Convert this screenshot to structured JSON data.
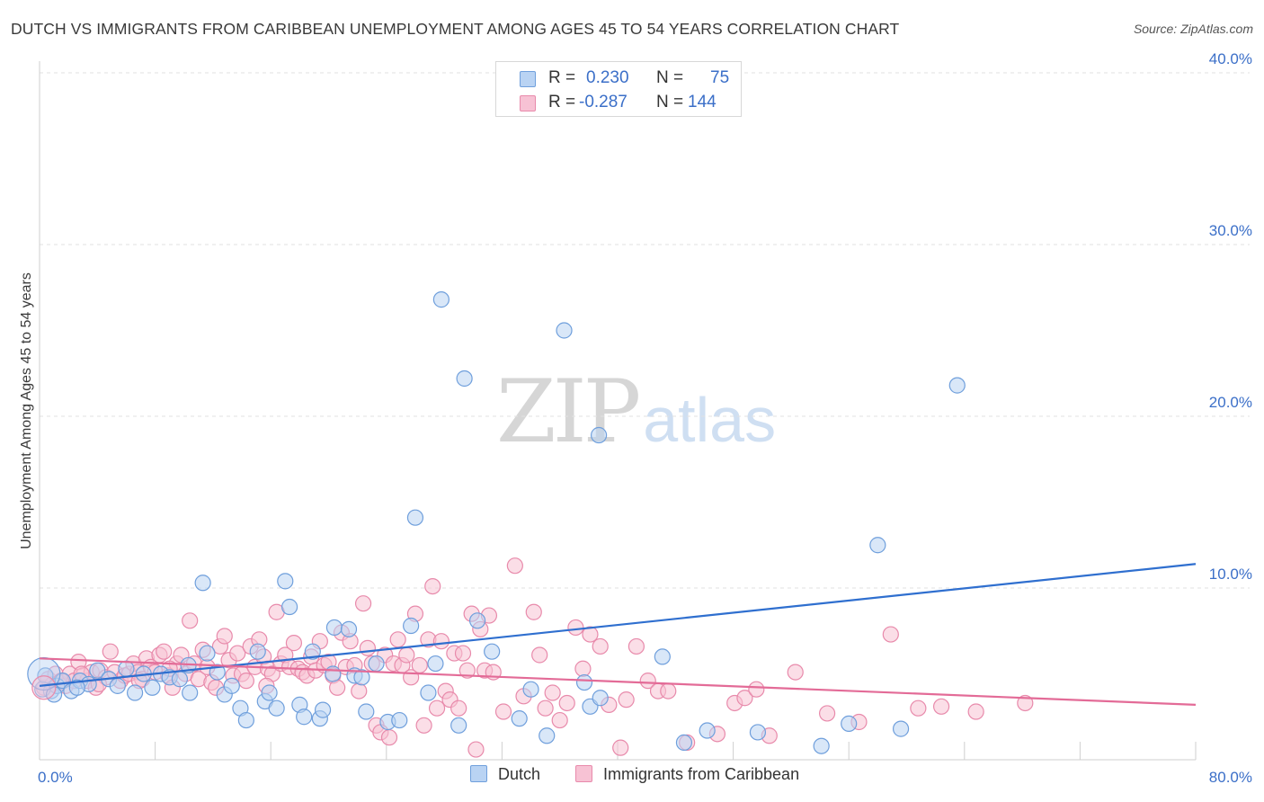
{
  "title": "DUTCH VS IMMIGRANTS FROM CARIBBEAN UNEMPLOYMENT AMONG AGES 45 TO 54 YEARS CORRELATION CHART",
  "source": "Source: ZipAtlas.com",
  "watermark": {
    "zip": "ZIP",
    "atlas": "atlas"
  },
  "colors": {
    "dutch_fill": "#b9d3f3",
    "dutch_stroke": "#6f9fdc",
    "dutch_line": "#2f6fcf",
    "carib_fill": "#f7c2d4",
    "carib_stroke": "#e88aab",
    "carib_line": "#e36b97",
    "axis_label": "#3b6fc8"
  },
  "legend_top": {
    "rows": [
      {
        "r_label": "R =",
        "r_value": "0.230",
        "n_label": "N =",
        "n_value": "75"
      },
      {
        "r_label": "R =",
        "r_value": "-0.287",
        "n_label": "N =",
        "n_value": "144"
      }
    ]
  },
  "legend_bottom": [
    {
      "label": "Dutch"
    },
    {
      "label": "Immigrants from Caribbean"
    }
  ],
  "chart_data": {
    "type": "scatter",
    "title": "DUTCH VS IMMIGRANTS FROM CARIBBEAN UNEMPLOYMENT AMONG AGES 45 TO 54 YEARS CORRELATION CHART",
    "xlabel": "",
    "ylabel": "Unemployment Among Ages 45 to 54 years",
    "xlim": [
      0,
      80
    ],
    "ylim": [
      0,
      40
    ],
    "x_tick_labels": [
      "0.0%",
      "80.0%"
    ],
    "y_tick_labels": [
      {
        "value": 10,
        "label": "10.0%"
      },
      {
        "value": 20,
        "label": "20.0%"
      },
      {
        "value": 30,
        "label": "30.0%"
      },
      {
        "value": 40,
        "label": "40.0%"
      }
    ],
    "grid": true,
    "series": [
      {
        "name": "Dutch",
        "R": 0.23,
        "N": 75,
        "trend": {
          "x": [
            0,
            80
          ],
          "y": [
            4.3,
            11.4
          ]
        },
        "points": [
          [
            0.4,
            4.9
          ],
          [
            0.8,
            4.0
          ],
          [
            1.2,
            4.3
          ],
          [
            1.6,
            4.6
          ],
          [
            2.2,
            4.0
          ],
          [
            2.8,
            4.6
          ],
          [
            3.4,
            4.4
          ],
          [
            4.0,
            5.2
          ],
          [
            4.8,
            4.7
          ],
          [
            5.4,
            4.3
          ],
          [
            6.0,
            5.3
          ],
          [
            6.6,
            3.9
          ],
          [
            7.2,
            5.0
          ],
          [
            7.8,
            4.2
          ],
          [
            8.4,
            5.0
          ],
          [
            9.0,
            4.8
          ],
          [
            9.7,
            4.7
          ],
          [
            10.3,
            5.5
          ],
          [
            10.4,
            3.9
          ],
          [
            11.3,
            10.3
          ],
          [
            11.6,
            6.2
          ],
          [
            12.3,
            5.1
          ],
          [
            12.8,
            3.8
          ],
          [
            13.3,
            4.3
          ],
          [
            13.9,
            3.0
          ],
          [
            14.3,
            2.3
          ],
          [
            15.1,
            6.3
          ],
          [
            15.6,
            3.4
          ],
          [
            15.9,
            3.9
          ],
          [
            16.4,
            3.0
          ],
          [
            17.0,
            10.4
          ],
          [
            17.3,
            8.9
          ],
          [
            18.0,
            3.2
          ],
          [
            18.3,
            2.5
          ],
          [
            18.9,
            6.3
          ],
          [
            19.4,
            2.4
          ],
          [
            19.6,
            2.9
          ],
          [
            20.4,
            7.7
          ],
          [
            20.3,
            5.0
          ],
          [
            21.4,
            7.6
          ],
          [
            21.8,
            4.9
          ],
          [
            22.3,
            4.8
          ],
          [
            22.6,
            2.8
          ],
          [
            23.3,
            5.6
          ],
          [
            24.1,
            2.2
          ],
          [
            24.9,
            2.3
          ],
          [
            25.7,
            7.8
          ],
          [
            26.0,
            14.1
          ],
          [
            26.9,
            3.9
          ],
          [
            27.4,
            5.6
          ],
          [
            27.8,
            26.8
          ],
          [
            29.0,
            2.0
          ],
          [
            29.4,
            22.2
          ],
          [
            30.3,
            8.1
          ],
          [
            31.3,
            6.3
          ],
          [
            33.2,
            2.4
          ],
          [
            34.0,
            4.1
          ],
          [
            36.3,
            25.0
          ],
          [
            35.1,
            1.4
          ],
          [
            37.7,
            4.5
          ],
          [
            38.1,
            3.1
          ],
          [
            38.8,
            3.6
          ],
          [
            38.7,
            18.9
          ],
          [
            43.1,
            6.0
          ],
          [
            44.6,
            1.0
          ],
          [
            46.2,
            1.7
          ],
          [
            49.7,
            1.6
          ],
          [
            54.1,
            0.8
          ],
          [
            56.0,
            2.1
          ],
          [
            58.0,
            12.5
          ],
          [
            59.6,
            1.8
          ],
          [
            63.5,
            21.8
          ],
          [
            0.2,
            4.1
          ],
          [
            1.0,
            3.8
          ],
          [
            2.6,
            4.2
          ]
        ]
      },
      {
        "name": "Immigrants from Caribbean",
        "R": -0.287,
        "N": 144,
        "trend": {
          "x": [
            0,
            80
          ],
          "y": [
            5.9,
            3.2
          ]
        },
        "points": [
          [
            0.3,
            4.2
          ],
          [
            0.6,
            4.7
          ],
          [
            0.9,
            4.4
          ],
          [
            1.1,
            5.0
          ],
          [
            1.4,
            4.5
          ],
          [
            1.8,
            4.3
          ],
          [
            2.1,
            5.0
          ],
          [
            2.4,
            4.6
          ],
          [
            2.7,
            5.7
          ],
          [
            3.0,
            4.9
          ],
          [
            3.3,
            4.6
          ],
          [
            3.6,
            5.1
          ],
          [
            3.9,
            4.2
          ],
          [
            4.2,
            5.2
          ],
          [
            4.6,
            4.8
          ],
          [
            4.9,
            6.3
          ],
          [
            5.2,
            5.1
          ],
          [
            5.6,
            4.6
          ],
          [
            5.9,
            4.9
          ],
          [
            6.2,
            5.0
          ],
          [
            6.5,
            5.6
          ],
          [
            6.8,
            5.1
          ],
          [
            7.1,
            4.7
          ],
          [
            7.4,
            5.9
          ],
          [
            7.7,
            5.4
          ],
          [
            8.0,
            5.1
          ],
          [
            8.3,
            6.1
          ],
          [
            8.6,
            6.3
          ],
          [
            8.9,
            4.9
          ],
          [
            9.2,
            4.2
          ],
          [
            9.5,
            5.6
          ],
          [
            9.8,
            6.1
          ],
          [
            10.1,
            5.0
          ],
          [
            10.4,
            8.1
          ],
          [
            10.7,
            5.6
          ],
          [
            11.0,
            4.7
          ],
          [
            11.3,
            6.4
          ],
          [
            11.6,
            5.4
          ],
          [
            11.9,
            4.5
          ],
          [
            12.2,
            4.2
          ],
          [
            12.5,
            6.6
          ],
          [
            12.8,
            7.2
          ],
          [
            13.1,
            5.8
          ],
          [
            13.4,
            4.9
          ],
          [
            13.7,
            6.2
          ],
          [
            14.0,
            5.0
          ],
          [
            14.3,
            4.6
          ],
          [
            14.6,
            6.6
          ],
          [
            14.9,
            5.4
          ],
          [
            15.2,
            7.0
          ],
          [
            15.5,
            6.0
          ],
          [
            15.8,
            5.3
          ],
          [
            16.1,
            5.0
          ],
          [
            16.4,
            8.6
          ],
          [
            16.7,
            5.6
          ],
          [
            17.0,
            6.1
          ],
          [
            17.3,
            5.4
          ],
          [
            17.6,
            6.8
          ],
          [
            17.9,
            5.3
          ],
          [
            18.2,
            5.1
          ],
          [
            18.5,
            4.9
          ],
          [
            18.8,
            6.0
          ],
          [
            19.1,
            5.2
          ],
          [
            19.4,
            6.9
          ],
          [
            19.7,
            5.5
          ],
          [
            20.0,
            5.7
          ],
          [
            20.3,
            4.9
          ],
          [
            20.6,
            4.2
          ],
          [
            20.9,
            7.4
          ],
          [
            21.2,
            5.4
          ],
          [
            21.5,
            6.9
          ],
          [
            21.8,
            5.5
          ],
          [
            22.1,
            4.0
          ],
          [
            22.4,
            9.1
          ],
          [
            22.7,
            6.5
          ],
          [
            23.0,
            5.6
          ],
          [
            23.3,
            2.0
          ],
          [
            23.6,
            1.6
          ],
          [
            23.9,
            6.1
          ],
          [
            24.2,
            1.3
          ],
          [
            24.5,
            5.6
          ],
          [
            24.8,
            7.0
          ],
          [
            25.1,
            5.5
          ],
          [
            25.4,
            6.1
          ],
          [
            25.7,
            4.8
          ],
          [
            26.0,
            8.5
          ],
          [
            26.3,
            5.5
          ],
          [
            26.6,
            2.0
          ],
          [
            26.9,
            7.0
          ],
          [
            27.2,
            10.1
          ],
          [
            27.5,
            3.0
          ],
          [
            27.8,
            6.9
          ],
          [
            28.1,
            4.0
          ],
          [
            28.4,
            3.5
          ],
          [
            28.7,
            6.2
          ],
          [
            29.0,
            3.0
          ],
          [
            29.3,
            6.2
          ],
          [
            29.6,
            5.2
          ],
          [
            29.9,
            8.5
          ],
          [
            30.2,
            0.6
          ],
          [
            30.5,
            7.6
          ],
          [
            30.8,
            5.2
          ],
          [
            31.1,
            8.4
          ],
          [
            31.4,
            5.1
          ],
          [
            32.1,
            2.8
          ],
          [
            32.9,
            11.3
          ],
          [
            33.5,
            3.7
          ],
          [
            34.2,
            8.6
          ],
          [
            34.6,
            6.1
          ],
          [
            35.0,
            3.0
          ],
          [
            35.5,
            3.9
          ],
          [
            36.0,
            2.3
          ],
          [
            36.5,
            3.3
          ],
          [
            37.1,
            7.7
          ],
          [
            37.6,
            5.3
          ],
          [
            38.1,
            7.3
          ],
          [
            38.8,
            6.6
          ],
          [
            39.4,
            3.2
          ],
          [
            40.2,
            0.7
          ],
          [
            40.6,
            3.5
          ],
          [
            41.3,
            6.6
          ],
          [
            42.1,
            4.6
          ],
          [
            42.8,
            4.0
          ],
          [
            43.5,
            4.0
          ],
          [
            44.8,
            1.0
          ],
          [
            46.9,
            1.5
          ],
          [
            48.1,
            3.3
          ],
          [
            48.8,
            3.6
          ],
          [
            49.6,
            4.1
          ],
          [
            50.5,
            1.4
          ],
          [
            52.3,
            5.1
          ],
          [
            54.5,
            2.7
          ],
          [
            56.7,
            2.2
          ],
          [
            58.9,
            7.3
          ],
          [
            60.8,
            3.0
          ],
          [
            62.4,
            3.1
          ],
          [
            64.8,
            2.8
          ],
          [
            68.2,
            3.3
          ],
          [
            1.5,
            4.6
          ],
          [
            2.9,
            5.0
          ],
          [
            4.1,
            4.4
          ],
          [
            6.9,
            4.6
          ],
          [
            9.0,
            5.3
          ],
          [
            15.7,
            4.3
          ]
        ]
      }
    ]
  }
}
